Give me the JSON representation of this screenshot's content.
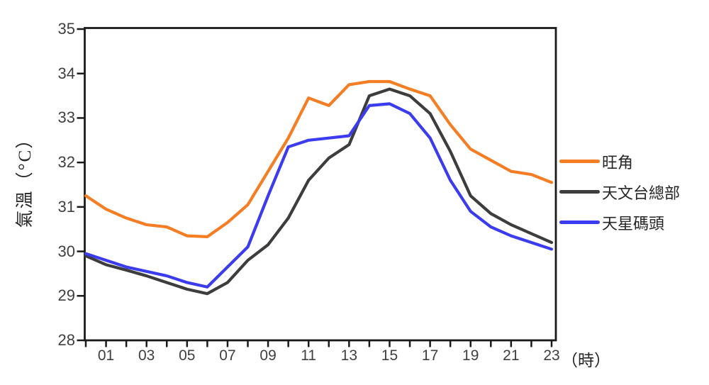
{
  "chart_data": {
    "type": "line",
    "title": "",
    "ylabel": "氣溫（°C）",
    "xlabel": "（時）",
    "xlim": [
      0,
      23
    ],
    "ylim": [
      28,
      35
    ],
    "grid": false,
    "legend_position": "right",
    "x_hours": [
      0,
      1,
      2,
      3,
      4,
      5,
      6,
      7,
      8,
      9,
      10,
      11,
      12,
      13,
      14,
      15,
      16,
      17,
      18,
      19,
      20,
      21,
      22,
      23
    ],
    "x_tick_hours": [
      1,
      3,
      5,
      7,
      9,
      11,
      13,
      15,
      17,
      19,
      21,
      23
    ],
    "x_tick_labels": [
      "01",
      "03",
      "05",
      "07",
      "09",
      "11",
      "13",
      "15",
      "17",
      "19",
      "21",
      "23"
    ],
    "y_tick_labels": [
      "35",
      "34",
      "33",
      "32",
      "31",
      "30",
      "29",
      "28"
    ],
    "series": [
      {
        "name": "旺角",
        "color": "#F57D23",
        "values": [
          31.25,
          30.95,
          30.75,
          30.6,
          30.55,
          30.35,
          30.33,
          30.65,
          31.05,
          31.8,
          32.55,
          33.45,
          33.28,
          33.75,
          33.82,
          33.82,
          33.65,
          33.5,
          32.85,
          32.3,
          32.05,
          31.8,
          31.73,
          31.55
        ]
      },
      {
        "name": "天文台總部",
        "color": "#3D3D3D",
        "values": [
          29.9,
          29.7,
          29.58,
          29.45,
          29.3,
          29.15,
          29.05,
          29.3,
          29.8,
          30.15,
          30.75,
          31.6,
          32.1,
          32.4,
          33.5,
          33.65,
          33.5,
          33.1,
          32.25,
          31.25,
          30.85,
          30.6,
          30.4,
          30.2
        ]
      },
      {
        "name": "天星碼頭",
        "color": "#3B3BEF",
        "values": [
          29.95,
          29.8,
          29.65,
          29.55,
          29.45,
          29.3,
          29.2,
          29.65,
          30.1,
          31.25,
          32.35,
          32.5,
          32.55,
          32.6,
          33.28,
          33.32,
          33.1,
          32.55,
          31.6,
          30.9,
          30.55,
          30.35,
          30.2,
          30.05
        ]
      }
    ]
  },
  "colors": {
    "axis": "#1A1A1A",
    "tick_text": "#404040",
    "label_text": "#262626"
  }
}
